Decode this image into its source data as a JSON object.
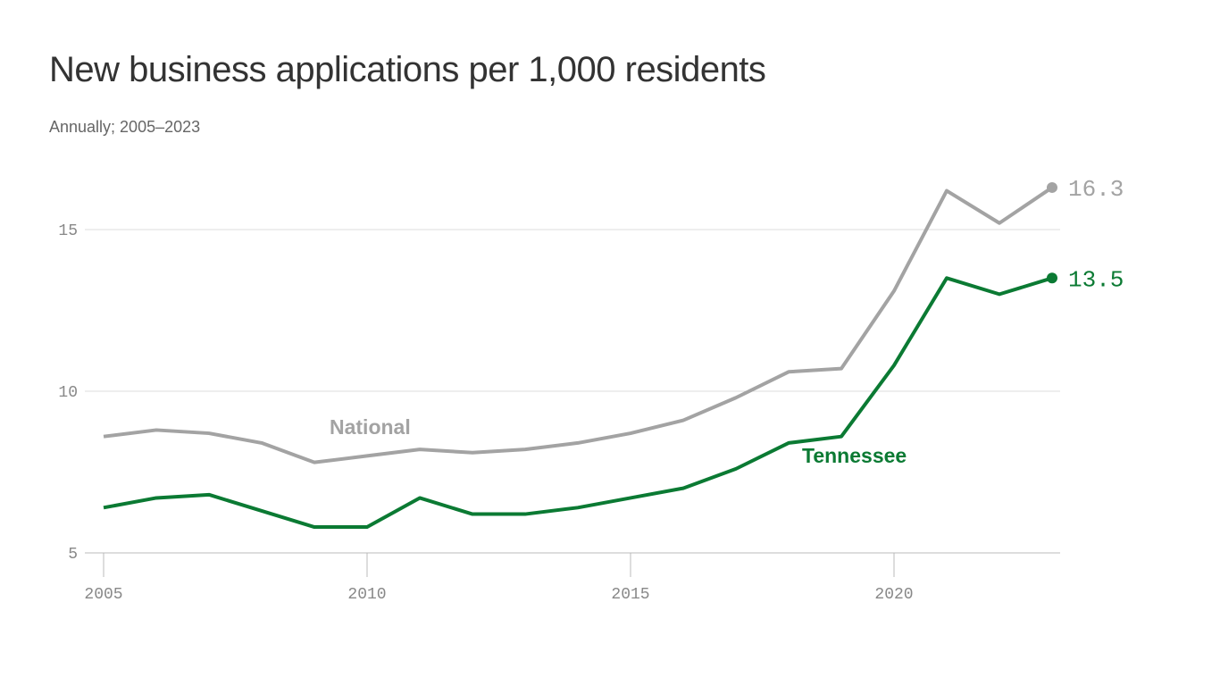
{
  "chart_data": {
    "type": "line",
    "title": "New business applications per 1,000 residents",
    "subtitle": "Annually; 2005–2023",
    "xlabel": "",
    "ylabel": "",
    "x": [
      2005,
      2006,
      2007,
      2008,
      2009,
      2010,
      2011,
      2012,
      2013,
      2014,
      2015,
      2016,
      2017,
      2018,
      2019,
      2020,
      2021,
      2022,
      2023
    ],
    "x_ticks": [
      "2005",
      "2010",
      "2015",
      "2020"
    ],
    "y_ticks": [
      "5",
      "10",
      "15"
    ],
    "ylim": [
      5,
      16.6
    ],
    "grid": "horizontal",
    "series": [
      {
        "name": "National",
        "color": "#a3a3a3",
        "end_label": "16.3",
        "values": [
          8.6,
          8.8,
          8.7,
          8.4,
          7.8,
          8.0,
          8.2,
          8.1,
          8.2,
          8.4,
          8.7,
          9.1,
          9.8,
          10.6,
          10.7,
          13.1,
          16.2,
          15.2,
          16.3
        ]
      },
      {
        "name": "Tennessee",
        "color": "#0b7a33",
        "end_label": "13.5",
        "values": [
          6.4,
          6.7,
          6.8,
          6.3,
          5.8,
          5.8,
          6.7,
          6.2,
          6.2,
          6.4,
          6.7,
          7.0,
          7.6,
          8.4,
          8.6,
          10.8,
          13.5,
          13.0,
          13.5
        ]
      }
    ]
  }
}
